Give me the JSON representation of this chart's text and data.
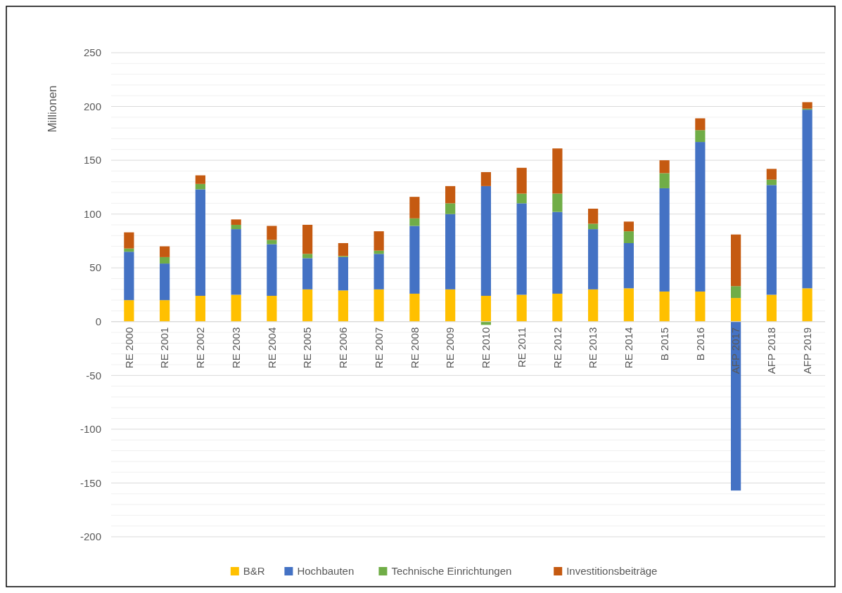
{
  "chart_data": {
    "type": "bar",
    "stacked": true,
    "ylabel": "Millionen",
    "categories": [
      "RE 2000",
      "RE 2001",
      "RE 2002",
      "RE 2003",
      "RE 2004",
      "RE 2005",
      "RE 2006",
      "RE 2007",
      "RE 2008",
      "RE 2009",
      "RE 2010",
      "RE 2011",
      "RE 2012",
      "RE 2013",
      "RE 2014",
      "B 2015",
      "B 2016",
      "AFP 2017",
      "AFP 2018",
      "AFP 2019"
    ],
    "series": [
      {
        "name": "B&R",
        "color": "#ffc000",
        "values": [
          20,
          20,
          24,
          25,
          24,
          30,
          29,
          30,
          26,
          30,
          24,
          25,
          26,
          30,
          31,
          28,
          28,
          22,
          25,
          31
        ]
      },
      {
        "name": "Hochbauten",
        "color": "#4472c4",
        "values": [
          45,
          34,
          99,
          61,
          48,
          29,
          31,
          33,
          63,
          70,
          102,
          85,
          76,
          56,
          42,
          96,
          139,
          -157,
          102,
          166
        ]
      },
      {
        "name": "Technische Einrichtungen",
        "color": "#70ad47",
        "values": [
          3,
          6,
          5,
          4,
          4,
          4,
          1,
          3,
          7,
          10,
          -3,
          9,
          17,
          5,
          11,
          14,
          11,
          11,
          5,
          1
        ]
      },
      {
        "name": "Investitionsbeiträge",
        "color": "#c55a11",
        "values": [
          15,
          10,
          8,
          5,
          13,
          27,
          12,
          18,
          20,
          16,
          13,
          24,
          42,
          14,
          9,
          12,
          11,
          48,
          10,
          6
        ]
      }
    ],
    "ylim": [
      -200,
      250
    ],
    "yticks": [
      -200,
      {
        "value": -190,
        "label": null
      },
      {
        "value": -180,
        "label": null
      },
      {
        "value": -170,
        "label": null
      },
      {
        "value": -160,
        "label": null
      },
      -150,
      {
        "value": -140,
        "label": null
      },
      {
        "value": -130,
        "label": null
      },
      {
        "value": -120,
        "label": null
      },
      {
        "value": -110,
        "label": null
      },
      -100,
      {
        "value": -90,
        "label": null
      },
      {
        "value": -80,
        "label": null
      },
      {
        "value": -70,
        "label": null
      },
      {
        "value": -60,
        "label": null
      },
      -50,
      {
        "value": -40,
        "label": null
      },
      {
        "value": -30,
        "label": null
      },
      {
        "value": -20,
        "label": null
      },
      {
        "value": -10,
        "label": null
      },
      0,
      {
        "value": 10,
        "label": null
      },
      {
        "value": 20,
        "label": null
      },
      {
        "value": 30,
        "label": null
      },
      {
        "value": 40,
        "label": null
      },
      50,
      {
        "value": 60,
        "label": null
      },
      {
        "value": 70,
        "label": null
      },
      {
        "value": 80,
        "label": null
      },
      {
        "value": 90,
        "label": null
      },
      100,
      {
        "value": 110,
        "label": null
      },
      {
        "value": 120,
        "label": null
      },
      {
        "value": 130,
        "label": null
      },
      {
        "value": 140,
        "label": null
      },
      150,
      {
        "value": 160,
        "label": null
      },
      {
        "value": 170,
        "label": null
      },
      {
        "value": 180,
        "label": null
      },
      {
        "value": 190,
        "label": null
      },
      200,
      {
        "value": 210,
        "label": null
      },
      {
        "value": 220,
        "label": null
      },
      {
        "value": 230,
        "label": null
      },
      {
        "value": 240,
        "label": null
      },
      250
    ],
    "grid": "y",
    "legend": "bottom"
  }
}
